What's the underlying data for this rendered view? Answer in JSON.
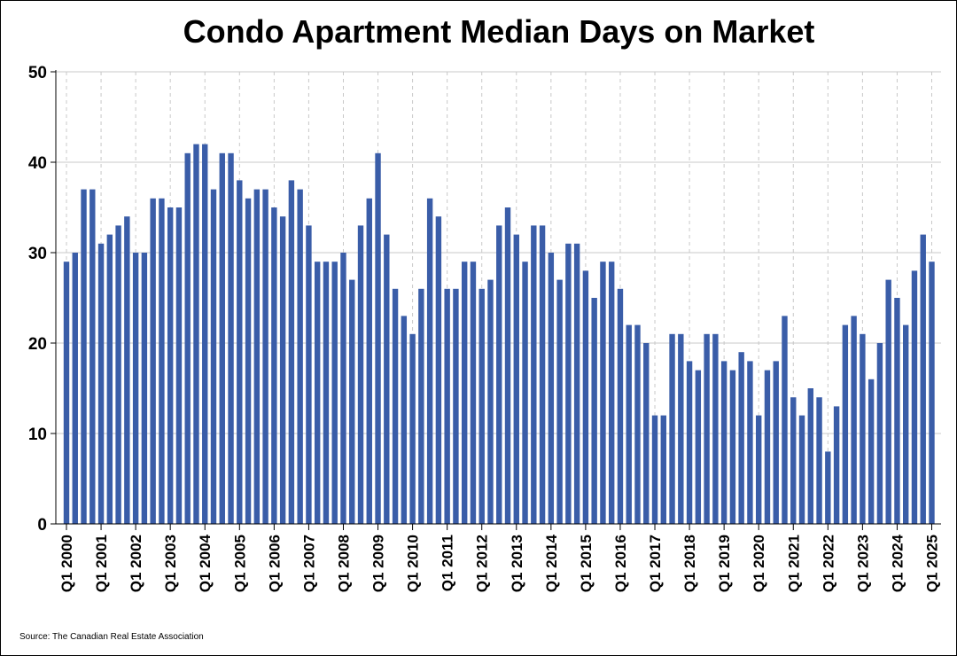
{
  "chart_data": {
    "type": "bar",
    "title": "Condo Apartment Median Days on Market",
    "xlabel": "",
    "ylabel": "",
    "ylim": [
      0,
      50
    ],
    "yticks": [
      0,
      10,
      20,
      30,
      40,
      50
    ],
    "grid": true,
    "bar_color": "#3A5DA8",
    "source": "Source: The Canadian Real Estate Association",
    "tick_labels": [
      "Q1 2000",
      "Q1 2001",
      "Q1 2002",
      "Q1 2003",
      "Q1 2004",
      "Q1 2005",
      "Q1 2006",
      "Q1 2007",
      "Q1 2008",
      "Q1 2009",
      "Q1 2010",
      "Q1 2011",
      "Q1 2012",
      "Q1 2013",
      "Q1 2014",
      "Q1 2015",
      "Q1 2016",
      "Q1 2017",
      "Q1 2018",
      "Q1 2019",
      "Q1 2020",
      "Q1 2021",
      "Q1 2022",
      "Q1 2023",
      "Q1 2024",
      "Q1 2025"
    ],
    "categories": [
      "Q1 2000",
      "Q2 2000",
      "Q3 2000",
      "Q4 2000",
      "Q1 2001",
      "Q2 2001",
      "Q3 2001",
      "Q4 2001",
      "Q1 2002",
      "Q2 2002",
      "Q3 2002",
      "Q4 2002",
      "Q1 2003",
      "Q2 2003",
      "Q3 2003",
      "Q4 2003",
      "Q1 2004",
      "Q2 2004",
      "Q3 2004",
      "Q4 2004",
      "Q1 2005",
      "Q2 2005",
      "Q3 2005",
      "Q4 2005",
      "Q1 2006",
      "Q2 2006",
      "Q3 2006",
      "Q4 2006",
      "Q1 2007",
      "Q2 2007",
      "Q3 2007",
      "Q4 2007",
      "Q1 2008",
      "Q2 2008",
      "Q3 2008",
      "Q4 2008",
      "Q1 2009",
      "Q2 2009",
      "Q3 2009",
      "Q4 2009",
      "Q1 2010",
      "Q2 2010",
      "Q3 2010",
      "Q4 2010",
      "Q1 2011",
      "Q2 2011",
      "Q3 2011",
      "Q4 2011",
      "Q1 2012",
      "Q2 2012",
      "Q3 2012",
      "Q4 2012",
      "Q1 2013",
      "Q2 2013",
      "Q3 2013",
      "Q4 2013",
      "Q1 2014",
      "Q2 2014",
      "Q3 2014",
      "Q4 2014",
      "Q1 2015",
      "Q2 2015",
      "Q3 2015",
      "Q4 2015",
      "Q1 2016",
      "Q2 2016",
      "Q3 2016",
      "Q4 2016",
      "Q1 2017",
      "Q2 2017",
      "Q3 2017",
      "Q4 2017",
      "Q1 2018",
      "Q2 2018",
      "Q3 2018",
      "Q4 2018",
      "Q1 2019",
      "Q2 2019",
      "Q3 2019",
      "Q4 2019",
      "Q1 2020",
      "Q2 2020",
      "Q3 2020",
      "Q4 2020",
      "Q1 2021",
      "Q2 2021",
      "Q3 2021",
      "Q4 2021",
      "Q1 2022",
      "Q2 2022",
      "Q3 2022",
      "Q4 2022",
      "Q1 2023",
      "Q2 2023",
      "Q3 2023",
      "Q4 2023",
      "Q1 2024",
      "Q2 2024",
      "Q3 2024",
      "Q4 2024",
      "Q1 2025"
    ],
    "values": [
      29,
      30,
      37,
      37,
      31,
      32,
      33,
      34,
      30,
      30,
      36,
      36,
      35,
      35,
      41,
      42,
      42,
      37,
      41,
      41,
      38,
      36,
      37,
      37,
      35,
      34,
      38,
      37,
      33,
      29,
      29,
      29,
      30,
      27,
      33,
      36,
      41,
      32,
      26,
      23,
      21,
      26,
      36,
      34,
      26,
      26,
      29,
      29,
      26,
      27,
      33,
      35,
      32,
      29,
      33,
      33,
      30,
      27,
      31,
      31,
      28,
      25,
      29,
      29,
      26,
      22,
      22,
      20,
      12,
      12,
      21,
      21,
      18,
      17,
      21,
      21,
      18,
      17,
      19,
      18,
      12,
      17,
      18,
      23,
      14,
      12,
      15,
      14,
      8,
      13,
      22,
      23,
      21,
      16,
      20,
      27,
      25,
      22,
      28,
      32,
      29
    ]
  }
}
